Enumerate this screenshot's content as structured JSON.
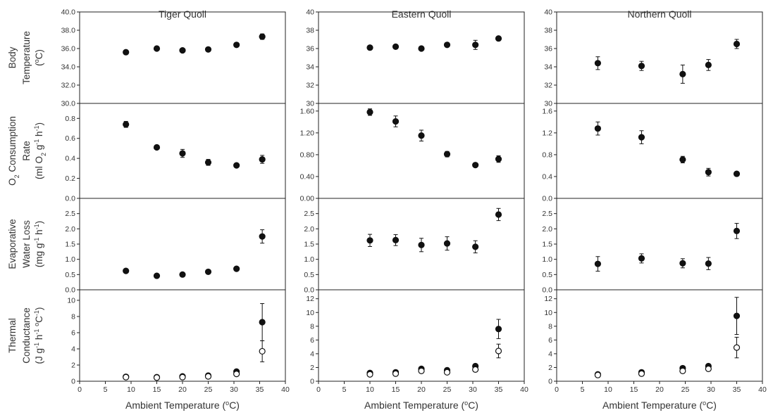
{
  "x_axis": {
    "label_text": "Ambient Temperature (",
    "label_deg": "o",
    "label_end": "C)",
    "range": [
      0,
      40
    ],
    "ticks": [
      "0",
      "5",
      "10",
      "15",
      "20",
      "25",
      "30",
      "35",
      "40"
    ]
  },
  "columns": [
    {
      "title": "Tiger Quoll"
    },
    {
      "title": "Eastern Quoll"
    },
    {
      "title": "Northern Quoll"
    }
  ],
  "row_labels": [
    [
      {
        "text": "Body"
      },
      {
        "text": "Temperature"
      },
      {
        "parts": [
          {
            "t": "("
          },
          {
            "t": "o",
            "sup": true
          },
          {
            "t": "C)"
          }
        ]
      }
    ],
    [
      {
        "parts": [
          {
            "t": "O"
          },
          {
            "t": "2",
            "sub": true
          },
          {
            "t": " Consumption"
          }
        ]
      },
      {
        "text": "Rate"
      },
      {
        "parts": [
          {
            "t": "(ml O"
          },
          {
            "t": "2",
            "sub": true
          },
          {
            "t": " g"
          },
          {
            "t": "-1",
            "sup": true
          },
          {
            "t": " h"
          },
          {
            "t": "-1",
            "sup": true
          },
          {
            "t": ")"
          }
        ]
      }
    ],
    [
      {
        "text": "Evaporative"
      },
      {
        "text": "Water Loss"
      },
      {
        "parts": [
          {
            "t": "(mg g"
          },
          {
            "t": "-1",
            "sup": true
          },
          {
            "t": " h"
          },
          {
            "t": "-1",
            "sup": true
          },
          {
            "t": ")"
          }
        ]
      }
    ],
    [
      {
        "text": "Thermal"
      },
      {
        "text": "Conductance"
      },
      {
        "parts": [
          {
            "t": "(J g"
          },
          {
            "t": "-1",
            "sup": true
          },
          {
            "t": " h"
          },
          {
            "t": "-1",
            "sup": true
          },
          {
            "t": " "
          },
          {
            "t": "o",
            "sup": true
          },
          {
            "t": "C"
          },
          {
            "t": "-1",
            "sup": true
          },
          {
            "t": ")"
          }
        ]
      }
    ]
  ],
  "chart_data": [
    {
      "type": "scatter",
      "row": 0,
      "col": 0,
      "ylim": [
        30,
        40
      ],
      "yticks": [
        "30.0",
        "32.0",
        "34.0",
        "36.0",
        "38.0",
        "40.0"
      ],
      "series": [
        {
          "filled": true,
          "points": [
            [
              9,
              35.6,
              0.1
            ],
            [
              15,
              36.0,
              0.1
            ],
            [
              20,
              35.8,
              0.1
            ],
            [
              25,
              35.9,
              0.15
            ],
            [
              30.5,
              36.4,
              0.1
            ],
            [
              35.5,
              37.3,
              0.3
            ]
          ]
        }
      ]
    },
    {
      "type": "scatter",
      "row": 0,
      "col": 1,
      "ylim": [
        30,
        40
      ],
      "yticks": [
        "30",
        "32",
        "34",
        "36",
        "38",
        "40"
      ],
      "series": [
        {
          "filled": true,
          "points": [
            [
              10,
              36.1,
              0.1
            ],
            [
              15,
              36.2,
              0.1
            ],
            [
              20,
              36.0,
              0.1
            ],
            [
              25,
              36.4,
              0.1
            ],
            [
              30.5,
              36.4,
              0.5
            ],
            [
              35,
              37.1,
              0.1
            ]
          ]
        }
      ]
    },
    {
      "type": "scatter",
      "row": 0,
      "col": 2,
      "ylim": [
        30,
        40
      ],
      "yticks": [
        "30",
        "32",
        "34",
        "36",
        "38",
        "40"
      ],
      "series": [
        {
          "filled": true,
          "points": [
            [
              8,
              34.4,
              0.7
            ],
            [
              16.5,
              34.1,
              0.5
            ],
            [
              24.5,
              33.2,
              1.0
            ],
            [
              29.5,
              34.2,
              0.6
            ],
            [
              35,
              36.5,
              0.5
            ]
          ]
        }
      ]
    },
    {
      "type": "scatter",
      "row": 1,
      "col": 0,
      "ylim": [
        0,
        0.95
      ],
      "yticks": [
        "0.0",
        "0.2",
        "0.4",
        "0.6",
        "0.8"
      ],
      "series": [
        {
          "filled": true,
          "points": [
            [
              9,
              0.74,
              0.03
            ],
            [
              15,
              0.51,
              0.02
            ],
            [
              20,
              0.45,
              0.04
            ],
            [
              25,
              0.36,
              0.03
            ],
            [
              30.5,
              0.33,
              0.01
            ],
            [
              35.5,
              0.39,
              0.04
            ]
          ]
        }
      ]
    },
    {
      "type": "scatter",
      "row": 1,
      "col": 1,
      "ylim": [
        0,
        1.74
      ],
      "yticks": [
        "0.00",
        "0.40",
        "0.80",
        "1.20",
        "1.60"
      ],
      "series": [
        {
          "filled": true,
          "points": [
            [
              10,
              1.58,
              0.06
            ],
            [
              15,
              1.41,
              0.1
            ],
            [
              20,
              1.15,
              0.1
            ],
            [
              25,
              0.81,
              0.05
            ],
            [
              30.5,
              0.61,
              0.02
            ],
            [
              35,
              0.72,
              0.06
            ]
          ]
        }
      ]
    },
    {
      "type": "scatter",
      "row": 1,
      "col": 2,
      "ylim": [
        0,
        1.74
      ],
      "yticks": [
        "0.0",
        "0.4",
        "0.8",
        "1.2",
        "1.6"
      ],
      "series": [
        {
          "filled": true,
          "points": [
            [
              8,
              1.28,
              0.12
            ],
            [
              16.5,
              1.12,
              0.12
            ],
            [
              24.5,
              0.71,
              0.06
            ],
            [
              29.5,
              0.48,
              0.07
            ],
            [
              35,
              0.45,
              0.04
            ]
          ]
        }
      ]
    },
    {
      "type": "scatter",
      "row": 2,
      "col": 0,
      "ylim": [
        0,
        3
      ],
      "yticks": [
        "0.0",
        "0.5",
        "1.0",
        "1.5",
        "2.0",
        "2.5"
      ],
      "series": [
        {
          "filled": true,
          "points": [
            [
              9,
              0.62,
              0.03
            ],
            [
              15,
              0.46,
              0.03
            ],
            [
              20,
              0.5,
              0.03
            ],
            [
              25,
              0.59,
              0.03
            ],
            [
              30.5,
              0.69,
              0.03
            ],
            [
              35.5,
              1.75,
              0.22
            ]
          ]
        }
      ]
    },
    {
      "type": "scatter",
      "row": 2,
      "col": 1,
      "ylim": [
        0,
        3
      ],
      "yticks": [
        "0.0",
        "0.5",
        "1.0",
        "1.5",
        "2.0",
        "2.5"
      ],
      "series": [
        {
          "filled": true,
          "points": [
            [
              10,
              1.62,
              0.2
            ],
            [
              15,
              1.63,
              0.18
            ],
            [
              20,
              1.47,
              0.22
            ],
            [
              25,
              1.52,
              0.22
            ],
            [
              30.5,
              1.41,
              0.2
            ],
            [
              35,
              2.47,
              0.2
            ]
          ]
        }
      ]
    },
    {
      "type": "scatter",
      "row": 2,
      "col": 2,
      "ylim": [
        0,
        3
      ],
      "yticks": [
        "0.0",
        "0.5",
        "1.0",
        "1.5",
        "2.0",
        "2.5"
      ],
      "series": [
        {
          "filled": true,
          "points": [
            [
              8,
              0.85,
              0.24
            ],
            [
              16.5,
              1.03,
              0.15
            ],
            [
              24.5,
              0.87,
              0.15
            ],
            [
              29.5,
              0.86,
              0.2
            ],
            [
              35,
              1.93,
              0.25
            ]
          ]
        }
      ]
    },
    {
      "type": "scatter",
      "row": 3,
      "col": 0,
      "ylim": [
        0,
        11.3
      ],
      "yticks": [
        "0",
        "2",
        "4",
        "6",
        "8",
        "10"
      ],
      "series": [
        {
          "filled": true,
          "points": [
            [
              9,
              0.55,
              0.05
            ],
            [
              15,
              0.5,
              0.05
            ],
            [
              20,
              0.6,
              0.05
            ],
            [
              25,
              0.7,
              0.05
            ],
            [
              30.5,
              1.2,
              0.1
            ],
            [
              35.5,
              7.3,
              2.3
            ]
          ]
        },
        {
          "filled": false,
          "points": [
            [
              9,
              0.5,
              0.05
            ],
            [
              15,
              0.45,
              0.05
            ],
            [
              20,
              0.5,
              0.05
            ],
            [
              25,
              0.6,
              0.05
            ],
            [
              30.5,
              0.9,
              0.1
            ],
            [
              35.5,
              3.7,
              1.3
            ]
          ]
        }
      ]
    },
    {
      "type": "scatter",
      "row": 3,
      "col": 1,
      "ylim": [
        0,
        13.3
      ],
      "yticks": [
        "0",
        "2",
        "4",
        "6",
        "8",
        "10",
        "12"
      ],
      "series": [
        {
          "filled": true,
          "points": [
            [
              10,
              1.2,
              0.1
            ],
            [
              15,
              1.3,
              0.1
            ],
            [
              20,
              1.8,
              0.2
            ],
            [
              25,
              1.6,
              0.1
            ],
            [
              30.5,
              2.2,
              0.2
            ],
            [
              35,
              7.6,
              1.4
            ]
          ]
        },
        {
          "filled": false,
          "points": [
            [
              10,
              1.0,
              0.1
            ],
            [
              15,
              1.1,
              0.1
            ],
            [
              20,
              1.5,
              0.2
            ],
            [
              25,
              1.3,
              0.1
            ],
            [
              30.5,
              1.7,
              0.2
            ],
            [
              35,
              4.4,
              1.0
            ]
          ]
        }
      ]
    },
    {
      "type": "scatter",
      "row": 3,
      "col": 2,
      "ylim": [
        0,
        13.3
      ],
      "yticks": [
        "0",
        "2",
        "4",
        "6",
        "8",
        "10",
        "12"
      ],
      "series": [
        {
          "filled": true,
          "points": [
            [
              8,
              1.0,
              0.1
            ],
            [
              16.5,
              1.3,
              0.1
            ],
            [
              24.5,
              1.9,
              0.2
            ],
            [
              29.5,
              2.2,
              0.2
            ],
            [
              35,
              9.5,
              2.7
            ]
          ]
        },
        {
          "filled": false,
          "points": [
            [
              8,
              0.9,
              0.1
            ],
            [
              16.5,
              1.1,
              0.1
            ],
            [
              24.5,
              1.5,
              0.2
            ],
            [
              29.5,
              1.8,
              0.2
            ],
            [
              35,
              4.9,
              1.5
            ]
          ]
        }
      ]
    }
  ]
}
